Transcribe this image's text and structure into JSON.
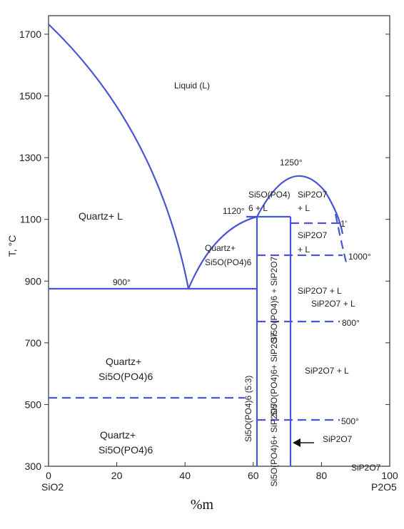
{
  "chart_data": {
    "type": "phase-diagram",
    "xlabel": "%m",
    "ylabel": "T, °C",
    "x_end_labels": {
      "left": "SiO2",
      "right": "P2O5"
    },
    "xlim": [
      0,
      100
    ],
    "ylim": [
      300,
      1750
    ],
    "x_ticks": [
      "0",
      "20",
      "40",
      "60",
      "80",
      "100"
    ],
    "y_ticks": [
      "300",
      "500",
      "700",
      "900",
      "1100",
      "1300",
      "1500",
      "1700"
    ],
    "temperature_labels": {
      "t1250": "1250°",
      "t1120": "1120°",
      "t1000": "1000°",
      "t900": "900°",
      "t800": "800°",
      "t500": "500°",
      "t1": "1'"
    },
    "regions": {
      "liquid": "Liquid (L)",
      "quartz_l": "Quartz+ L",
      "quartz_sipo_upper_a": "Quartz+",
      "quartz_sipo_upper_b": "Si5O(PO4)6",
      "quartz_sipo_mid_a": "Quartz+",
      "quartz_sipo_mid_b": "Si5O(PO4)6",
      "quartz_sipo_low_a": "Quartz+",
      "quartz_sipo_low_b": "Si5O(PO4)6",
      "sipo_l_a": "Si5O(PO4)",
      "sipo_l_b": "6 + L",
      "sip2o7_l_top_a": "SiP2O7",
      "sip2o7_l_top_b": "+ L",
      "sip2o7_l_mid_a": "SiP2O7",
      "sip2o7_l_mid_b": "+ L",
      "sip2o7_l_900a": "SiP2O7 + L",
      "sip2o7_l_900b": "SiP2O7 + L",
      "sip2o7_l_700": "SiP2O7 + L",
      "sip2o7_450": "SiP2O7",
      "sip2o7_340": "SiP2O7",
      "compound": "Si5O(PO4)6 (5:3)",
      "v_upper": "Si5O(PO4)6 + SiP2O7",
      "v_mid": "Si5O(PO4)6+ SiP2O7",
      "v_low": "Si5O(PO4)6+ SiP2O7"
    }
  }
}
